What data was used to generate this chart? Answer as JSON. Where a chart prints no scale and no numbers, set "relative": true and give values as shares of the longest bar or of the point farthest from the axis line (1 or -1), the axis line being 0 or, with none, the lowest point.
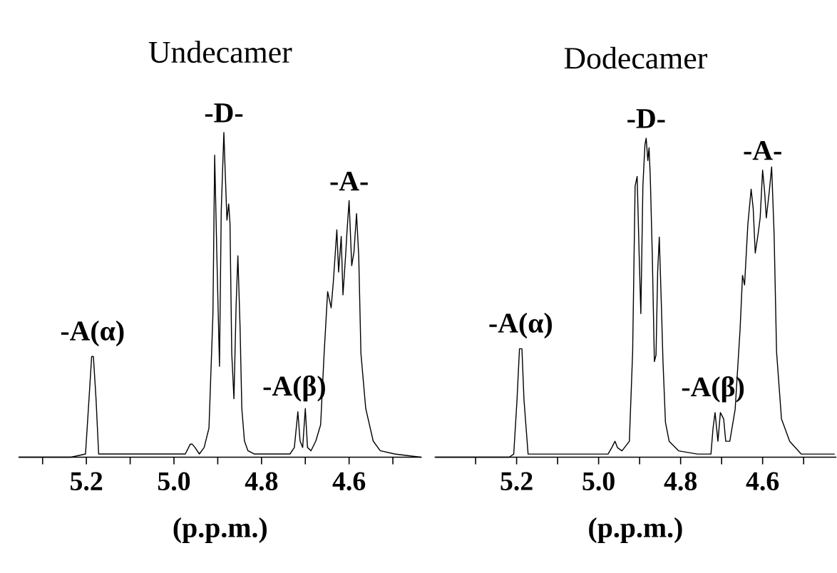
{
  "chart_data": [
    {
      "type": "line",
      "title": "Undecamer",
      "xlabel": "(p.p.m.)",
      "relative": true,
      "tick_labels": "x",
      "xlim": [
        5.355,
        4.434
      ],
      "xticks": [
        {
          "value": 5.3,
          "label": null
        },
        5.2,
        {
          "value": 5.1,
          "label": null
        },
        {
          "value": 5.0,
          "label": "5.0"
        },
        {
          "value": 4.9,
          "label": null
        },
        4.8,
        {
          "value": 4.7,
          "label": null
        },
        4.6,
        {
          "value": 4.5,
          "label": null
        }
      ],
      "x": [
        5.354,
        5.235,
        5.202,
        5.194,
        5.188,
        5.184,
        5.178,
        5.172,
        5.105,
        4.974,
        4.963,
        4.958,
        4.952,
        4.942,
        4.931,
        4.92,
        4.911,
        4.907,
        4.902,
        4.896,
        4.892,
        4.886,
        4.883,
        4.879,
        4.875,
        4.872,
        4.868,
        4.863,
        4.858,
        4.854,
        4.849,
        4.845,
        4.839,
        4.831,
        4.817,
        4.735,
        4.725,
        4.717,
        4.712,
        4.706,
        4.7,
        4.695,
        4.687,
        4.676,
        4.665,
        4.657,
        4.649,
        4.641,
        4.636,
        4.628,
        4.624,
        4.618,
        4.614,
        4.608,
        4.605,
        4.6,
        4.594,
        4.589,
        4.583,
        4.578,
        4.573,
        4.562,
        4.545,
        4.529,
        4.496,
        4.437
      ],
      "series": [
        {
          "color": "#000000",
          "values": [
            0,
            0.0,
            0.01,
            0.18,
            0.31,
            0.31,
            0.18,
            0.01,
            0.01,
            0.01,
            0.04,
            0.04,
            0.03,
            0.01,
            0.03,
            0.09,
            0.44,
            0.93,
            0.62,
            0.28,
            0.76,
            1.0,
            0.88,
            0.73,
            0.78,
            0.72,
            0.32,
            0.18,
            0.47,
            0.62,
            0.4,
            0.15,
            0.05,
            0.02,
            0.01,
            0.01,
            0.03,
            0.14,
            0.05,
            0.03,
            0.15,
            0.03,
            0.02,
            0.05,
            0.1,
            0.32,
            0.51,
            0.46,
            0.54,
            0.7,
            0.57,
            0.68,
            0.5,
            0.62,
            0.69,
            0.79,
            0.59,
            0.63,
            0.75,
            0.62,
            0.32,
            0.15,
            0.05,
            0.02,
            0.01,
            0.0
          ]
        }
      ],
      "annotations": [
        {
          "text": "-A(α)",
          "x": 5.186,
          "y": 0.31
        },
        {
          "text": "-D-",
          "x": 4.886,
          "y": 1.0
        },
        {
          "text": "-A(β)",
          "x": 4.725,
          "y": 0.14
        },
        {
          "text": "-A-",
          "x": 4.6,
          "y": 0.79
        }
      ]
    },
    {
      "type": "line",
      "title": "Dodecamer",
      "xlabel": "(p.p.m.)",
      "relative": true,
      "tick_labels": "x",
      "xlim": [
        5.4,
        4.42
      ],
      "xticks": [
        {
          "value": 5.3,
          "label": null
        },
        5.2,
        {
          "value": 5.1,
          "label": null
        },
        {
          "value": 5.0,
          "label": "5.0"
        },
        {
          "value": 4.9,
          "label": null
        },
        4.8,
        {
          "value": 4.7,
          "label": null
        },
        4.6,
        {
          "value": 4.5,
          "label": null
        }
      ],
      "x": [
        5.397,
        5.218,
        5.207,
        5.199,
        5.193,
        5.187,
        5.182,
        5.172,
        5.103,
        4.977,
        4.968,
        4.96,
        4.954,
        4.943,
        4.925,
        4.917,
        4.911,
        4.906,
        4.901,
        4.897,
        4.892,
        4.887,
        4.884,
        4.88,
        4.877,
        4.874,
        4.869,
        4.864,
        4.86,
        4.856,
        4.852,
        4.847,
        4.843,
        4.837,
        4.828,
        4.805,
        4.759,
        4.726,
        4.721,
        4.716,
        4.709,
        4.703,
        4.695,
        4.69,
        4.68,
        4.667,
        4.655,
        4.649,
        4.644,
        4.636,
        4.628,
        4.623,
        4.618,
        4.611,
        4.606,
        4.6,
        4.595,
        4.591,
        4.584,
        4.578,
        4.572,
        4.566,
        4.554,
        4.534,
        4.506,
        4.425
      ],
      "series": [
        {
          "color": "#000000",
          "values": [
            0,
            0.0,
            0.01,
            0.18,
            0.34,
            0.34,
            0.18,
            0.01,
            0.01,
            0.01,
            0.03,
            0.05,
            0.03,
            0.02,
            0.05,
            0.33,
            0.85,
            0.88,
            0.63,
            0.45,
            0.85,
            0.98,
            1.0,
            0.93,
            0.97,
            0.88,
            0.63,
            0.3,
            0.32,
            0.58,
            0.69,
            0.48,
            0.3,
            0.11,
            0.05,
            0.02,
            0.01,
            0.01,
            0.09,
            0.14,
            0.05,
            0.14,
            0.12,
            0.05,
            0.05,
            0.15,
            0.4,
            0.57,
            0.54,
            0.73,
            0.84,
            0.78,
            0.64,
            0.7,
            0.75,
            0.9,
            0.83,
            0.75,
            0.83,
            0.91,
            0.7,
            0.33,
            0.12,
            0.05,
            0.01,
            0.01
          ]
        }
      ],
      "annotations": [
        {
          "text": "-A(α)",
          "x": 5.19,
          "y": 0.34
        },
        {
          "text": "-D-",
          "x": 4.884,
          "y": 1.0
        },
        {
          "text": "-A(β)",
          "x": 4.721,
          "y": 0.14
        },
        {
          "text": "-A-",
          "x": 4.6,
          "y": 0.9
        }
      ]
    }
  ]
}
